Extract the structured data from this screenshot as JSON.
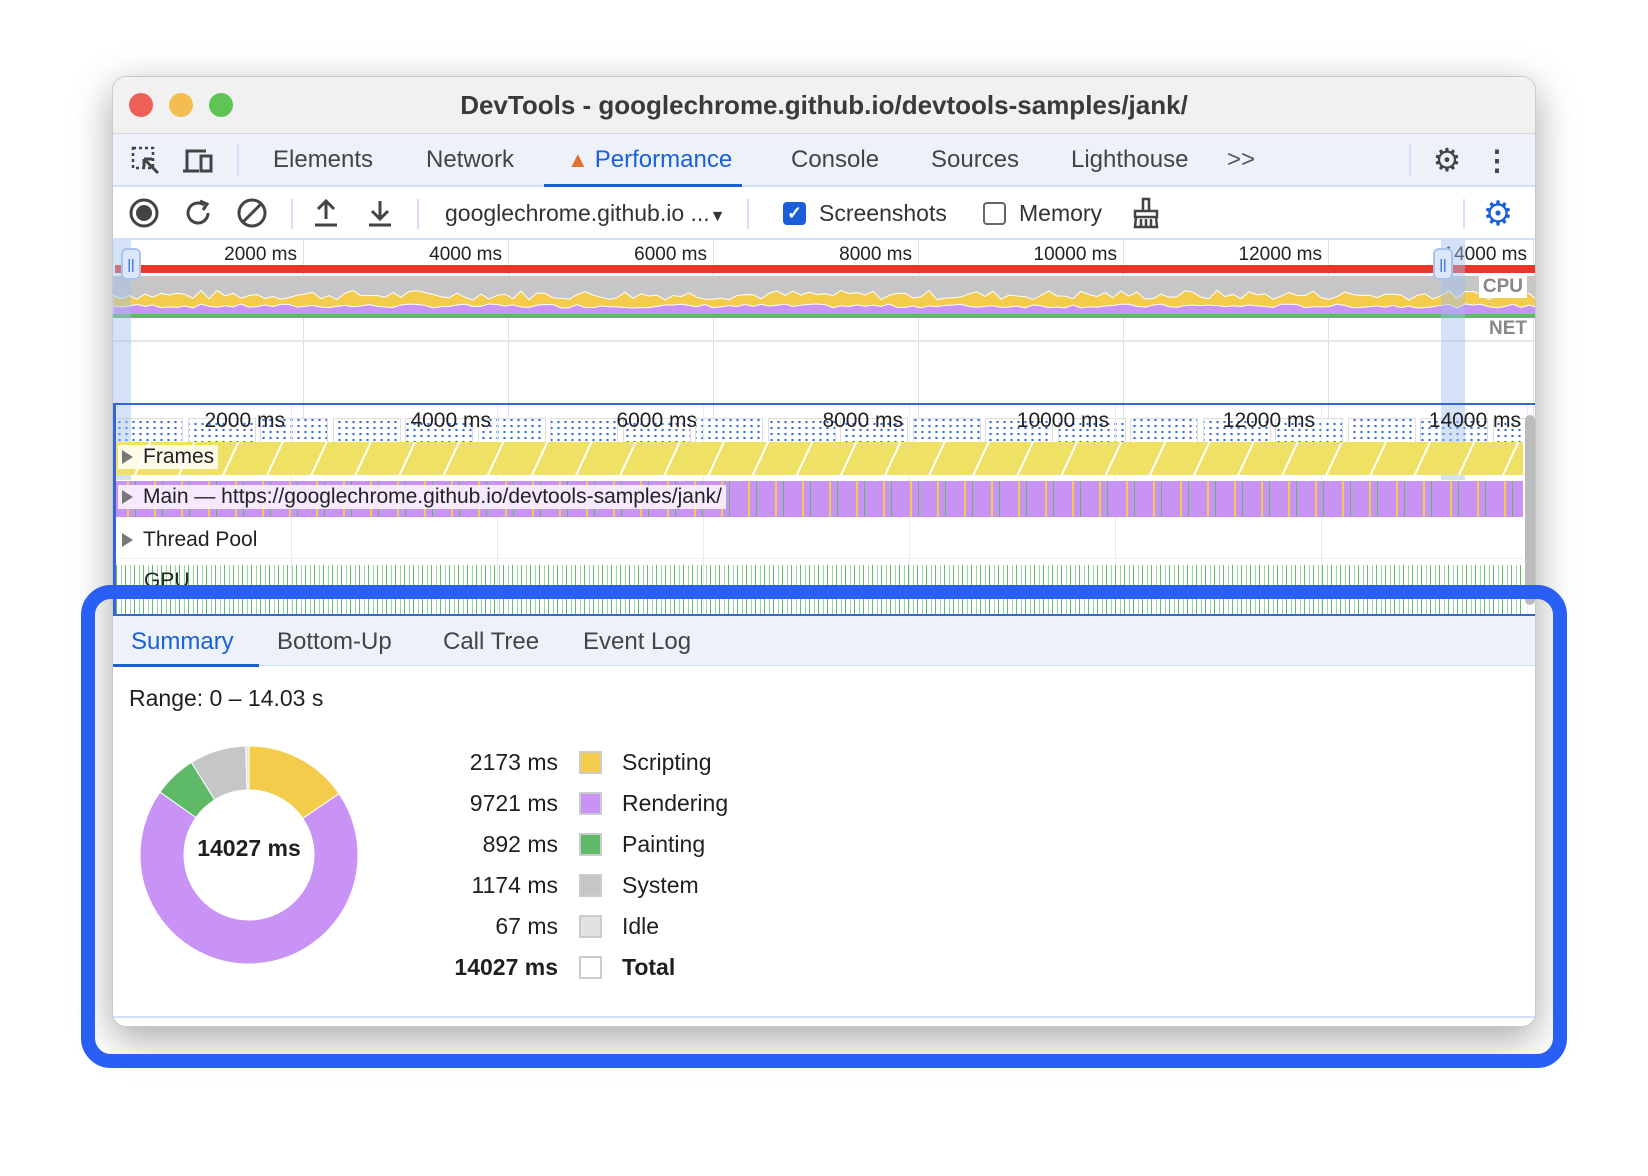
{
  "window": {
    "title": "DevTools - googlechrome.github.io/devtools-samples/jank/"
  },
  "tabs": [
    {
      "label": "Elements"
    },
    {
      "label": "Network"
    },
    {
      "label": "Performance",
      "active": true,
      "warning": true
    },
    {
      "label": "Console"
    },
    {
      "label": "Sources"
    },
    {
      "label": "Lighthouse"
    }
  ],
  "toolbar": {
    "target": "googlechrome.github.io ...",
    "screenshots_label": "Screenshots",
    "screenshots_checked": true,
    "memory_label": "Memory",
    "memory_checked": false
  },
  "overview": {
    "ticks": [
      "2000 ms",
      "4000 ms",
      "6000 ms",
      "8000 ms",
      "10000 ms",
      "12000 ms",
      "14000 ms"
    ],
    "cpu_label": "CPU",
    "net_label": "NET"
  },
  "timeline": {
    "ticks": [
      "2000 ms",
      "4000 ms",
      "6000 ms",
      "8000 ms",
      "10000 ms",
      "12000 ms",
      "14000 ms"
    ],
    "tracks": {
      "frames": "Frames",
      "main": "Main — https://googlechrome.github.io/devtools-samples/jank/",
      "thread_pool": "Thread Pool",
      "gpu": "GPU"
    }
  },
  "bottom_tabs": [
    {
      "label": "Summary",
      "active": true
    },
    {
      "label": "Bottom-Up"
    },
    {
      "label": "Call Tree"
    },
    {
      "label": "Event Log"
    }
  ],
  "summary": {
    "range": "Range: 0 – 14.03 s",
    "total_center": "14027 ms"
  },
  "chart_data": {
    "type": "pie",
    "title": "",
    "center_label": "14027 ms",
    "categories": [
      "Scripting",
      "Rendering",
      "Painting",
      "System",
      "Idle"
    ],
    "values": [
      2173,
      9721,
      892,
      1174,
      67
    ],
    "unit": "ms",
    "colors": [
      "#f2cc4a",
      "#c893f4",
      "#5fba67",
      "#c6c6c6",
      "#e2e2e2"
    ],
    "total": {
      "label": "Total",
      "value": "14027 ms"
    }
  },
  "legend": [
    {
      "value": "2173 ms",
      "label": "Scripting"
    },
    {
      "value": "9721 ms",
      "label": "Rendering"
    },
    {
      "value": "892 ms",
      "label": "Painting"
    },
    {
      "value": "1174 ms",
      "label": "System"
    },
    {
      "value": "67 ms",
      "label": "Idle"
    },
    {
      "value": "14027 ms",
      "label": "Total"
    }
  ],
  "colors": {
    "accent": "#1a5fd9",
    "highlight": "#2a5ff5",
    "frames": "#eee163",
    "main": "#c893f4"
  }
}
